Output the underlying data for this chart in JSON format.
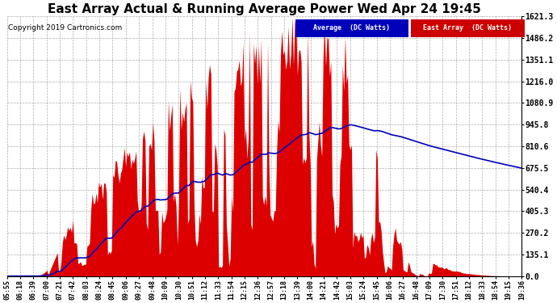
{
  "title": "East Array Actual & Running Average Power Wed Apr 24 19:45",
  "copyright": "Copyright 2019 Cartronics.com",
  "legend_labels": [
    "Average  (DC Watts)",
    "East Array  (DC Watts)"
  ],
  "legend_colors": [
    "#0000bb",
    "#cc0000"
  ],
  "yticks": [
    0.0,
    135.1,
    270.2,
    405.3,
    540.4,
    675.5,
    810.6,
    945.8,
    1080.9,
    1216.0,
    1351.1,
    1486.2,
    1621.3
  ],
  "ymax": 1621.3,
  "ymin": 0.0,
  "background_color": "#ffffff",
  "plot_bg": "#ffffff",
  "grid_color": "#999999",
  "bar_color": "#dd0000",
  "line_color": "#0000bb",
  "title_fontsize": 11,
  "xtick_labels": [
    "05:55",
    "06:18",
    "06:39",
    "07:00",
    "07:21",
    "07:42",
    "08:03",
    "08:24",
    "08:45",
    "09:06",
    "09:27",
    "09:48",
    "10:09",
    "10:30",
    "10:51",
    "11:12",
    "11:33",
    "11:54",
    "12:15",
    "12:36",
    "12:57",
    "13:18",
    "13:39",
    "14:00",
    "14:21",
    "14:42",
    "15:03",
    "15:24",
    "15:45",
    "16:06",
    "16:27",
    "16:48",
    "17:09",
    "17:30",
    "17:51",
    "18:12",
    "18:33",
    "18:54",
    "19:15",
    "19:36"
  ]
}
